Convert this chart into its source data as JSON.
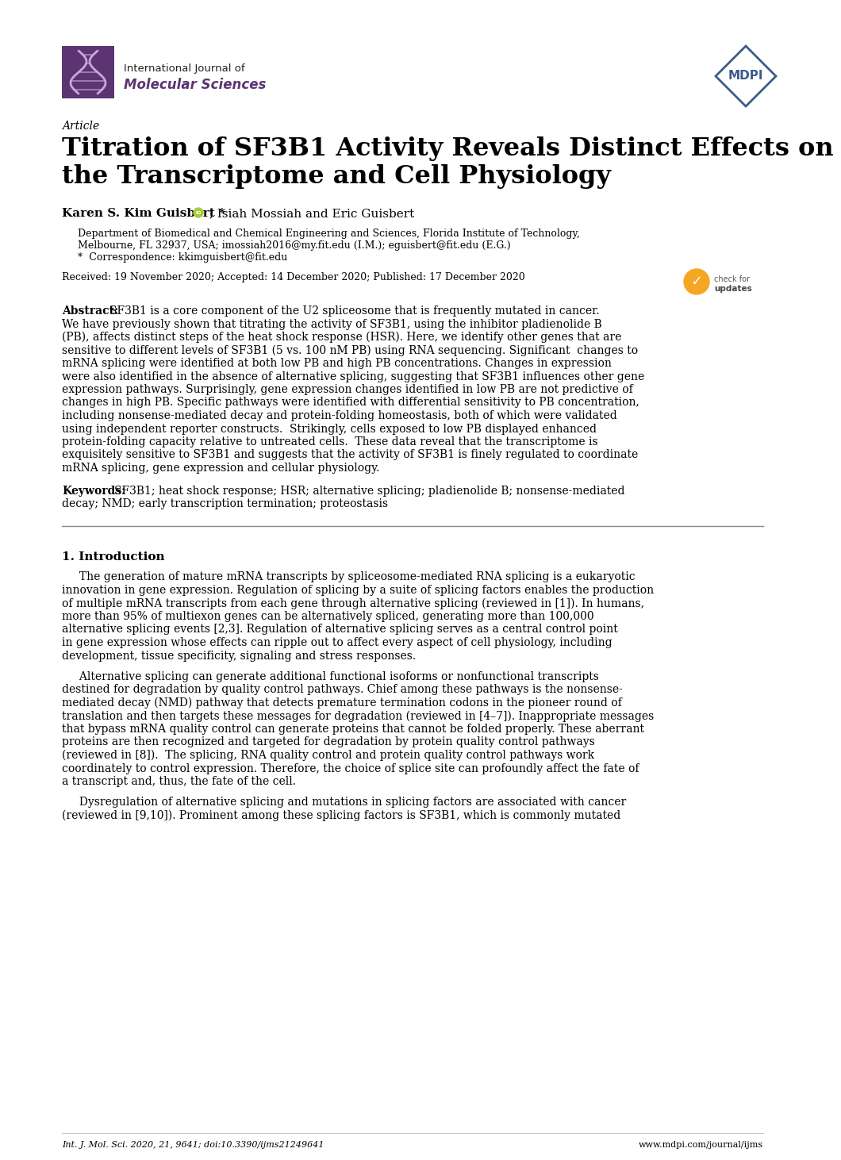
{
  "title_article": "Article",
  "title_main_line1": "Titration of SF3B1 Activity Reveals Distinct Effects on",
  "title_main_line2": "the Transcriptome and Cell Physiology",
  "journal_name_line1": "International Journal of",
  "journal_name_line2": "Molecular Sciences",
  "authors_bold": "Karen S. Kim Guisbert *",
  "authors_normal": ", Isiah Mossiah and Eric Guisbert",
  "affiliation_line1": "Department of Biomedical and Chemical Engineering and Sciences, Florida Institute of Technology,",
  "affiliation_line2": "Melbourne, FL 32937, USA; imossiah2016@my.fit.edu (I.M.); eguisbert@fit.edu (E.G.)",
  "correspondence": "*  Correspondence: kkimguisbert@fit.edu",
  "received": "Received: 19 November 2020; Accepted: 14 December 2020; Published: 17 December 2020",
  "abstract_lines": [
    "SF3B1 is a core component of the U2 spliceosome that is frequently mutated in cancer.",
    "We have previously shown that titrating the activity of SF3B1, using the inhibitor pladienolide B",
    "(PB), affects distinct steps of the heat shock response (HSR). Here, we identify other genes that are",
    "sensitive to different levels of SF3B1 (5 vs. 100 nM PB) using RNA sequencing. Significant  changes to",
    "mRNA splicing were identified at both low PB and high PB concentrations. Changes in expression",
    "were also identified in the absence of alternative splicing, suggesting that SF3B1 influences other gene",
    "expression pathways. Surprisingly, gene expression changes identified in low PB are not predictive of",
    "changes in high PB. Specific pathways were identified with differential sensitivity to PB concentration,",
    "including nonsense-mediated decay and protein-folding homeostasis, both of which were validated",
    "using independent reporter constructs.  Strikingly, cells exposed to low PB displayed enhanced",
    "protein-folding capacity relative to untreated cells.  These data reveal that the transcriptome is",
    "exquisitely sensitive to SF3B1 and suggests that the activity of SF3B1 is finely regulated to coordinate",
    "mRNA splicing, gene expression and cellular physiology."
  ],
  "keywords_line1": "SF3B1; heat shock response; HSR; alternative splicing; pladienolide B; nonsense-mediated",
  "keywords_line2": "decay; NMD; early transcription termination; proteostasis",
  "section_title": "1. Introduction",
  "p1_lines": [
    "The generation of mature mRNA transcripts by spliceosome-mediated RNA splicing is a eukaryotic",
    "innovation in gene expression. Regulation of splicing by a suite of splicing factors enables the production",
    "of multiple mRNA transcripts from each gene through alternative splicing (reviewed in [1]). In humans,",
    "more than 95% of multiexon genes can be alternatively spliced, generating more than 100,000",
    "alternative splicing events [2,3]. Regulation of alternative splicing serves as a central control point",
    "in gene expression whose effects can ripple out to affect every aspect of cell physiology, including",
    "development, tissue specificity, signaling and stress responses."
  ],
  "p2_lines": [
    "Alternative splicing can generate additional functional isoforms or nonfunctional transcripts",
    "destined for degradation by quality control pathways. Chief among these pathways is the nonsense-",
    "mediated decay (NMD) pathway that detects premature termination codons in the pioneer round of",
    "translation and then targets these messages for degradation (reviewed in [4–7]). Inappropriate messages",
    "that bypass mRNA quality control can generate proteins that cannot be folded properly. These aberrant",
    "proteins are then recognized and targeted for degradation by protein quality control pathways",
    "(reviewed in [8]).  The splicing, RNA quality control and protein quality control pathways work",
    "coordinately to control expression. Therefore, the choice of splice site can profoundly affect the fate of",
    "a transcript and, thus, the fate of the cell."
  ],
  "p3_lines": [
    "Dysregulation of alternative splicing and mutations in splicing factors are associated with cancer",
    "(reviewed in [9,10]). Prominent among these splicing factors is SF3B1, which is commonly mutated"
  ],
  "footer_left": "Int. J. Mol. Sci. 2020, 21, 9641; doi:10.3390/ijms21249641",
  "footer_right": "www.mdpi.com/journal/ijms",
  "background_color": "#ffffff",
  "text_color": "#000000",
  "journal_purple": "#5c3472",
  "logo_purple": "#5c3472",
  "mdpi_blue": "#3d5a8a",
  "separator_color": "#888888",
  "lh": 16.5
}
